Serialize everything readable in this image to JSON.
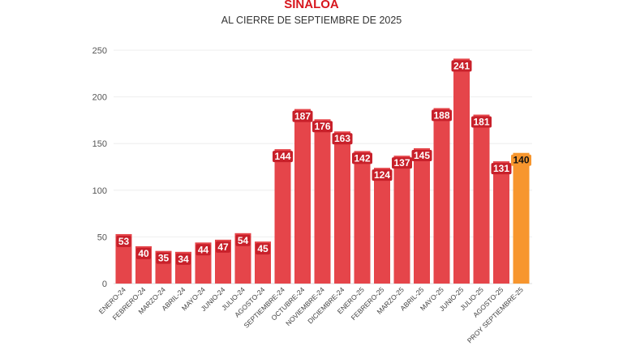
{
  "chart_data": {
    "type": "bar",
    "title": "SINALOA",
    "subtitle": "AL CIERRE DE SEPTIEMBRE DE 2025",
    "categories": [
      "ENERO-24",
      "FEBRERO-24",
      "MARZO-24",
      "ABRIL-24",
      "MAYO-24",
      "JUNIO-24",
      "JULIO-24",
      "AGOSTO-24",
      "SEPTIEMBRE-24",
      "OCTUBRE-24",
      "NOVIEMBRE-24",
      "DICIEMBRE-24",
      "ENERO-25",
      "FEBRERO-25",
      "MARZO-25",
      "ABRIL-25",
      "MAYO-25",
      "JUNIO-25",
      "JULIO-25",
      "AGOSTO-25",
      "PROY SEPTIEMBRE-25"
    ],
    "values": [
      53,
      40,
      35,
      34,
      44,
      47,
      54,
      45,
      144,
      187,
      176,
      163,
      142,
      124,
      137,
      145,
      188,
      241,
      181,
      131,
      140
    ],
    "ylim": [
      0,
      250
    ],
    "yticks": [
      0,
      50,
      100,
      150,
      200,
      250
    ],
    "grid": true,
    "xlabel": "",
    "ylabel": "",
    "colors": {
      "bar": "#e5454a",
      "projection": "#f7962e",
      "label_bg": "#c8202a",
      "title": "#d7161d"
    }
  }
}
